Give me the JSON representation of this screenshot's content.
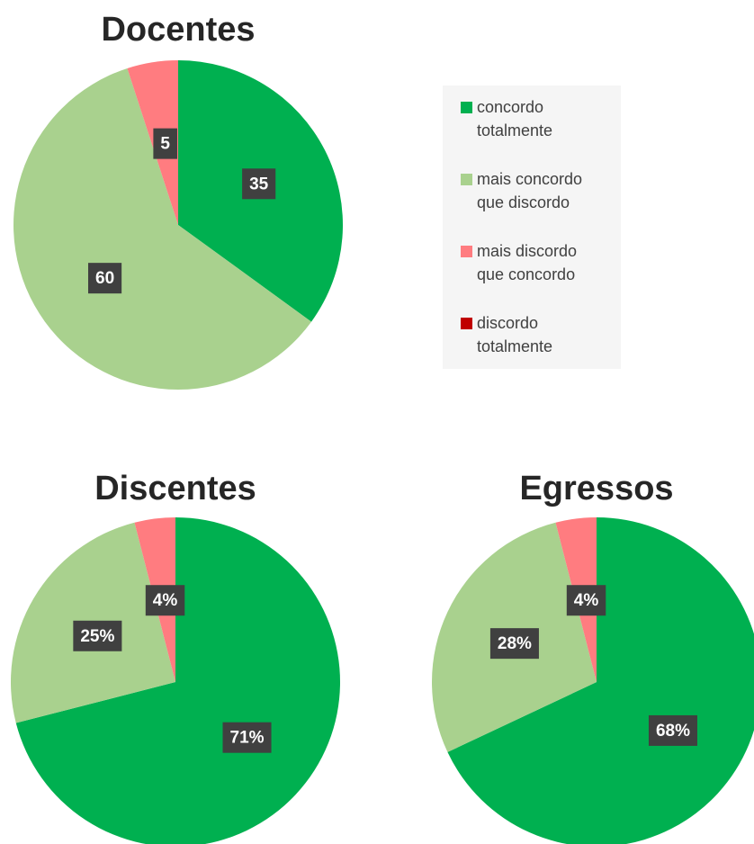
{
  "chart_data": [
    {
      "type": "pie",
      "title": "Docentes",
      "categories": [
        "concordo totalmente",
        "mais concordo que discordo",
        "mais discordo que concordo",
        "discordo totalmente"
      ],
      "colors": [
        "#00b050",
        "#a9d18e",
        "#ff7c80",
        "#c00000"
      ],
      "values": [
        35,
        60,
        5,
        0
      ]
    },
    {
      "type": "pie",
      "title": "Discentes",
      "values": [
        71,
        25,
        4,
        0
      ],
      "value_labels": [
        "71%",
        "25%",
        "4%",
        null
      ]
    },
    {
      "type": "pie",
      "title": "Egressos",
      "values": [
        68,
        28,
        4,
        0
      ],
      "value_labels": [
        "68%",
        "28%",
        "4%",
        null
      ]
    }
  ]
}
